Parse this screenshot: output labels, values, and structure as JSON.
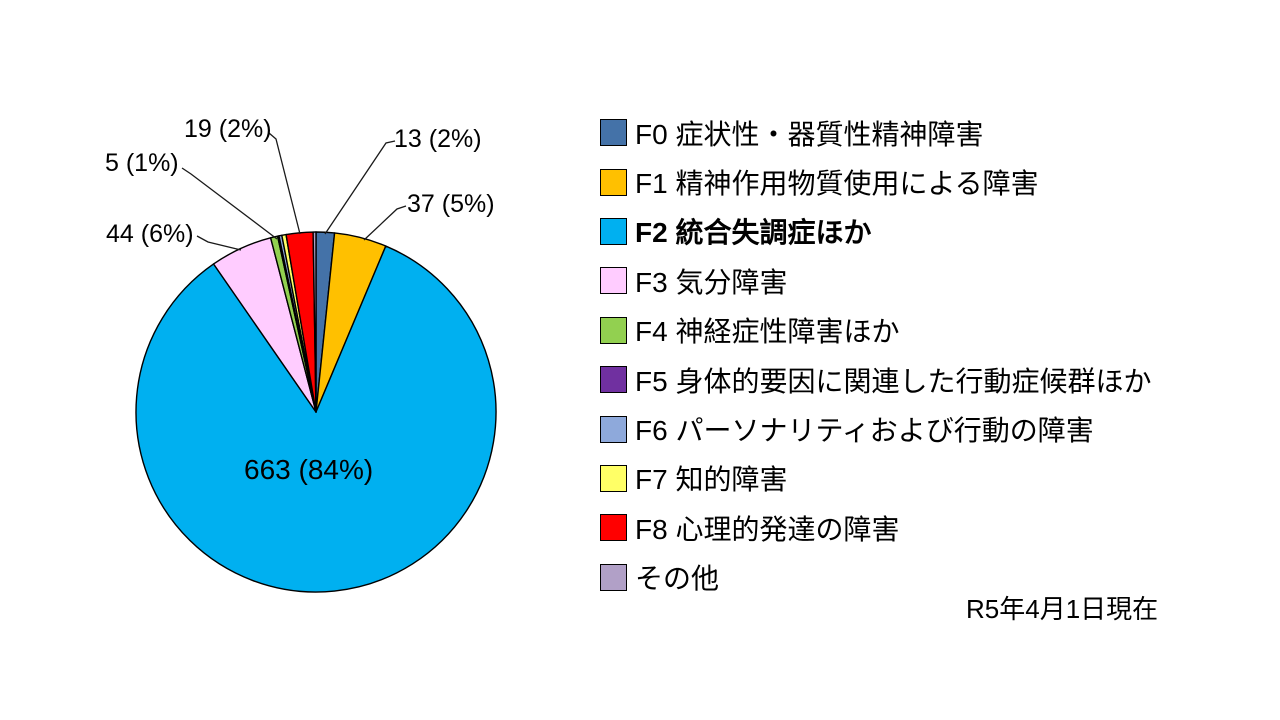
{
  "chart_data": {
    "type": "pie",
    "title": "",
    "legend_position": "right",
    "keys": [
      "f0",
      "f1",
      "f2",
      "f3",
      "f4",
      "f5",
      "f6",
      "f7",
      "f8",
      "other"
    ],
    "categories": [
      "F0 症状性・器質性精神障害",
      "F1 精神作用物質使用による障害",
      "F2 統合失調症ほか",
      "F3 気分障害",
      "F4 神経症性障害ほか",
      "F5 身体的要因に関連した行動症候群ほか",
      "F6 パーソナリティおよび行動の障害",
      "F7 知的障害",
      "F8 心理的発達の障害",
      "その他"
    ],
    "values": [
      13,
      37,
      663,
      44,
      5,
      1,
      2,
      3,
      19,
      2
    ],
    "values_note": "F5, F6, F7 and その他 slices carry no data label in the image; their values are estimated from slice angles (total ≈ 789). Labeled values: F0=13, F1=37, F2=663, F3=44, F4=5, F8=19.",
    "colors": [
      "#4472A8",
      "#FFC000",
      "#00B0F0",
      "#FFCCFF",
      "#92D050",
      "#7030A0",
      "#8EA9DB",
      "#FFFF66",
      "#FF0000",
      "#B1A0C7"
    ],
    "data_labels": {
      "f0": "13 (2%)",
      "f1": "37 (5%)",
      "f2": "663 (84%)",
      "f3": "44 (6%)",
      "f4": "5 (1%)",
      "f8": "19 (2%)"
    },
    "start_angle_deg": 0,
    "direction": "clockwise"
  },
  "legend": {
    "items": [
      {
        "label": "F0 症状性・器質性精神障害",
        "color": "#4472A8",
        "bold": false
      },
      {
        "label": "F1 精神作用物質使用による障害",
        "color": "#FFC000",
        "bold": false
      },
      {
        "label": "F2 統合失調症ほか",
        "color": "#00B0F0",
        "bold": true
      },
      {
        "label": "F3 気分障害",
        "color": "#FFCCFF",
        "bold": false
      },
      {
        "label": "F4 神経症性障害ほか",
        "color": "#92D050",
        "bold": false
      },
      {
        "label": "F5 身体的要因に関連した行動症候群ほか",
        "color": "#7030A0",
        "bold": false
      },
      {
        "label": "F6 パーソナリティおよび行動の障害",
        "color": "#8EA9DB",
        "bold": false
      },
      {
        "label": "F7 知的障害",
        "color": "#FFFF66",
        "bold": false
      },
      {
        "label": "F8 心理的発達の障害",
        "color": "#FF0000",
        "bold": false
      },
      {
        "label": "その他",
        "color": "#B1A0C7",
        "bold": false
      }
    ]
  },
  "footer": {
    "date": "R5年4月1日現在"
  }
}
